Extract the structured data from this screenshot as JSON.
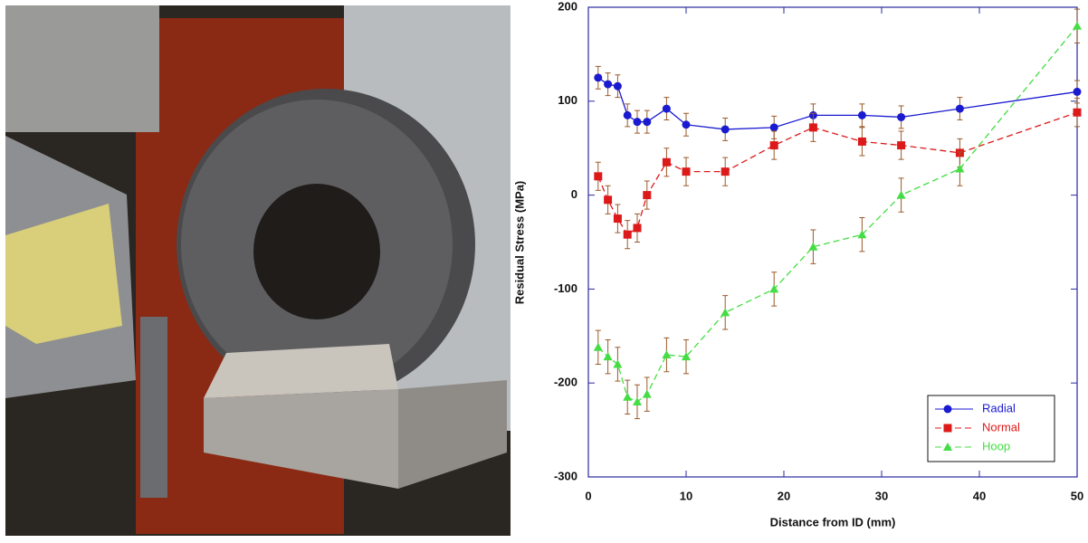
{
  "chart_data": {
    "type": "line",
    "xlabel": "Distance from ID (mm)",
    "ylabel": "Residual Stress (MPa)",
    "x": [
      1,
      2,
      3,
      4,
      5,
      6,
      8,
      10,
      14,
      19,
      23,
      28,
      32,
      38,
      50
    ],
    "series": [
      {
        "name": "Radial",
        "color": "#1a1ad0",
        "marker": "circle",
        "line_style": "solid",
        "values": [
          125,
          118,
          116,
          85,
          78,
          78,
          92,
          75,
          70,
          72,
          85,
          85,
          83,
          92,
          110
        ],
        "errors": [
          12,
          12,
          12,
          12,
          12,
          12,
          12,
          12,
          12,
          12,
          12,
          12,
          12,
          12,
          12
        ]
      },
      {
        "name": "Normal",
        "color": "#dd1a1a",
        "marker": "square",
        "line_style": "dashed",
        "values": [
          20,
          -5,
          -25,
          -42,
          -35,
          0,
          35,
          25,
          25,
          53,
          72,
          57,
          53,
          45,
          88
        ],
        "errors": [
          15,
          15,
          15,
          15,
          15,
          15,
          15,
          15,
          15,
          15,
          15,
          15,
          15,
          15,
          15
        ]
      },
      {
        "name": "Hoop",
        "color": "#44dd44",
        "marker": "triangle",
        "line_style": "dashed",
        "values": [
          -162,
          -172,
          -180,
          -215,
          -220,
          -212,
          -170,
          -172,
          -125,
          -100,
          -55,
          -42,
          0,
          28,
          180
        ],
        "errors": [
          18,
          18,
          18,
          18,
          18,
          18,
          18,
          18,
          18,
          18,
          18,
          18,
          18,
          18,
          18
        ]
      }
    ],
    "xlim": [
      0,
      50
    ],
    "xticks": [
      0,
      10,
      20,
      30,
      40,
      50
    ],
    "ylim": [
      -300,
      200
    ],
    "yticks": [
      -300,
      -200,
      -100,
      0,
      100,
      200
    ],
    "grid": false,
    "legend": "lower right"
  }
}
